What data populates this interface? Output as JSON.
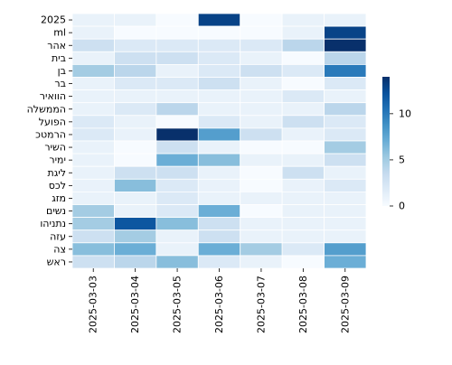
{
  "chart_data": {
    "type": "heatmap",
    "title": "",
    "xlabel": "",
    "ylabel": "",
    "x_categories": [
      "2025-03-03",
      "2025-03-04",
      "2025-03-05",
      "2025-03-06",
      "2025-03-07",
      "2025-03-08",
      "2025-03-09"
    ],
    "y_categories": [
      "2025",
      "ml",
      "אהר",
      "בית",
      "בן",
      "בר",
      "הוואיר",
      "הממשלה",
      "הפועל",
      "הרמטכ",
      "השיר",
      "ימיר",
      "ליגת",
      "לכס",
      "מזג",
      "נשים",
      "נתניהו",
      "עזה",
      "צה",
      "ראש"
    ],
    "values": [
      [
        1,
        1,
        0,
        13,
        0,
        1,
        1
      ],
      [
        1,
        0,
        0,
        0,
        0,
        1,
        13
      ],
      [
        3,
        2,
        2,
        2,
        2,
        4,
        14
      ],
      [
        1,
        3,
        3,
        2,
        1,
        0,
        4
      ],
      [
        5,
        4,
        1,
        2,
        3,
        2,
        10
      ],
      [
        1,
        2,
        2,
        3,
        1,
        0,
        2
      ],
      [
        1,
        1,
        1,
        1,
        1,
        2,
        1
      ],
      [
        1,
        2,
        4,
        1,
        1,
        1,
        4
      ],
      [
        2,
        1,
        0,
        2,
        1,
        3,
        2
      ],
      [
        2,
        1,
        14,
        8,
        3,
        1,
        2
      ],
      [
        1,
        0,
        3,
        1,
        0,
        0,
        5
      ],
      [
        1,
        0,
        7,
        6,
        1,
        1,
        3
      ],
      [
        1,
        3,
        3,
        1,
        0,
        3,
        1
      ],
      [
        1,
        6,
        2,
        1,
        0,
        1,
        2
      ],
      [
        1,
        1,
        2,
        1,
        1,
        1,
        1
      ],
      [
        5,
        1,
        2,
        7,
        0,
        1,
        1
      ],
      [
        5,
        12,
        6,
        3,
        1,
        1,
        1
      ],
      [
        3,
        5,
        1,
        3,
        1,
        1,
        1
      ],
      [
        6,
        7,
        1,
        7,
        5,
        2,
        8
      ],
      [
        3,
        4,
        6,
        2,
        1,
        0,
        7
      ]
    ],
    "colorbar": {
      "min": 0,
      "max": 14,
      "ticks": [
        0,
        5,
        10
      ],
      "colormap": "Blues"
    },
    "grid": "white cell borders",
    "legend": "colorbar at right"
  }
}
